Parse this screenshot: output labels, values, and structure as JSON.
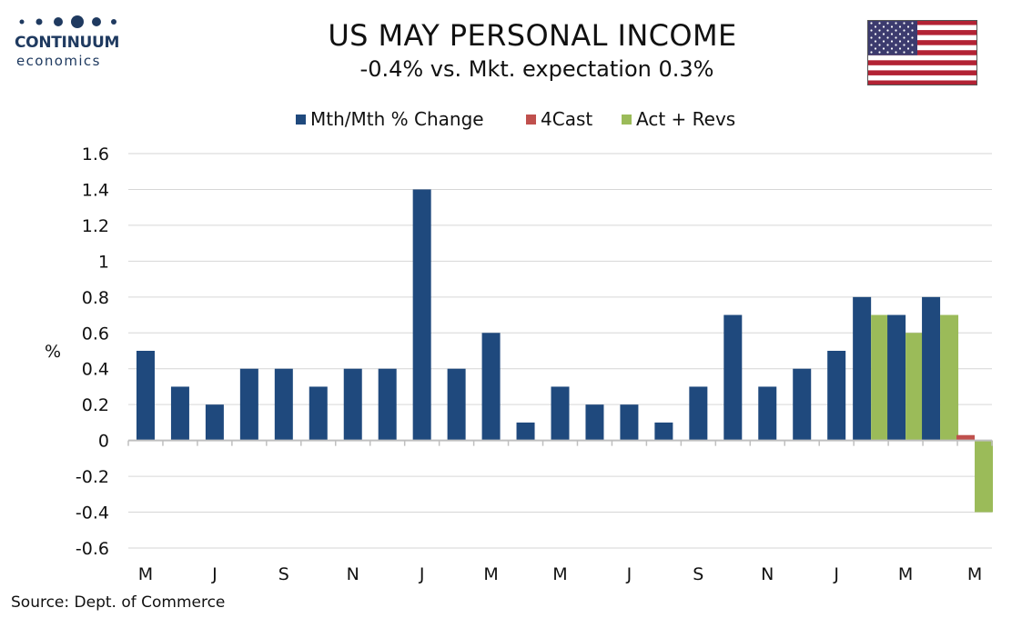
{
  "header": {
    "logo_name": "CONTINUUM",
    "logo_sub": "economics",
    "title": "US MAY PERSONAL INCOME",
    "subtitle": "-0.4% vs. Mkt. expectation 0.3%"
  },
  "source": "Source: Dept. of Commerce",
  "colors": {
    "primary": "#1f497d",
    "forecast": "#c0504d",
    "actual": "#9bbb59",
    "logo": "#1f3a60",
    "flag_red": "#b22234",
    "flag_blue": "#3c3b6e"
  },
  "chart_data": {
    "type": "bar",
    "title": "US MAY PERSONAL INCOME",
    "subtitle": "-0.4% vs. Mkt. expectation 0.3%",
    "ylabel": "%",
    "ylim": [
      -0.6,
      1.6
    ],
    "yticks": [
      1.6,
      1.4,
      1.2,
      1,
      0.8,
      0.6,
      0.4,
      0.2,
      0,
      -0.2,
      -0.4,
      -0.6
    ],
    "grid": true,
    "legend_position": "top",
    "x_tick_labels": [
      "M",
      "J",
      "S",
      "N",
      "J",
      "M",
      "M",
      "J",
      "S",
      "N",
      "J",
      "M",
      "M"
    ],
    "series": [
      {
        "name": "Mth/Mth % Change",
        "color": "#1f497d",
        "values": [
          0.5,
          0.3,
          0.2,
          0.4,
          0.4,
          0.3,
          0.4,
          0.4,
          1.4,
          0.4,
          0.6,
          0.1,
          0.3,
          0.2,
          0.2,
          0.1,
          0.3,
          0.7,
          0.3,
          0.4,
          0.5,
          0.8,
          0.7,
          0.8,
          null
        ]
      },
      {
        "name": "4Cast",
        "color": "#c0504d",
        "values": [
          null,
          null,
          null,
          null,
          null,
          null,
          null,
          null,
          null,
          null,
          null,
          null,
          null,
          null,
          null,
          null,
          null,
          null,
          null,
          null,
          null,
          null,
          null,
          null,
          0.03
        ]
      },
      {
        "name": "Act + Revs",
        "color": "#9bbb59",
        "values": [
          null,
          null,
          null,
          null,
          null,
          null,
          null,
          null,
          null,
          null,
          null,
          null,
          null,
          null,
          null,
          null,
          null,
          null,
          null,
          null,
          null,
          0.7,
          0.6,
          0.7,
          -0.4
        ]
      }
    ]
  }
}
